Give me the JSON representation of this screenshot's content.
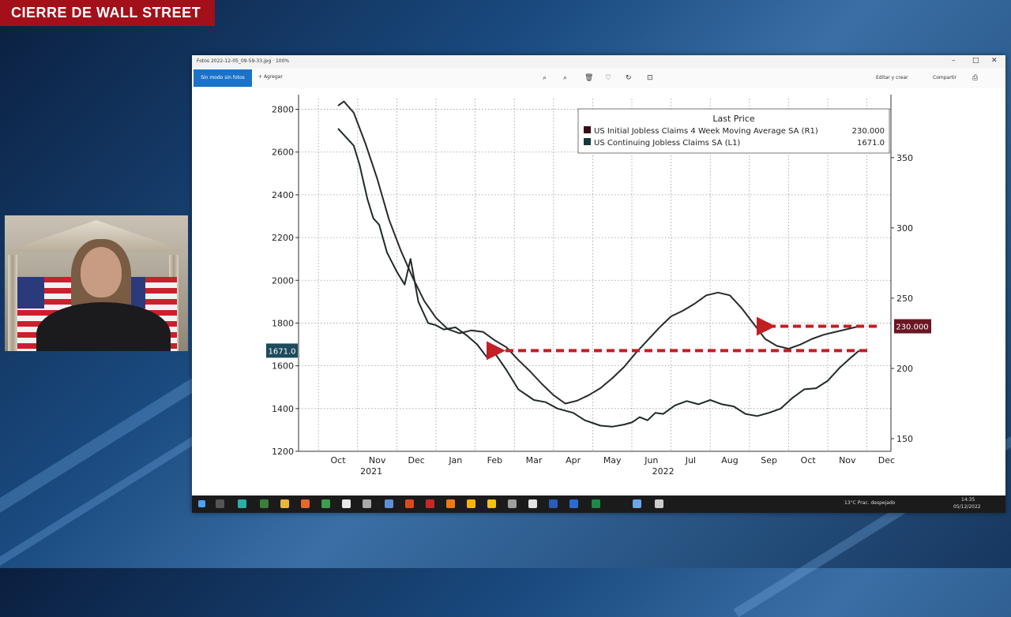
{
  "banner": {
    "title": "CIERRE DE WALL STREET"
  },
  "viewer": {
    "window_title": "Fotos 2022-12-05_09-59-33.jpg · 100%",
    "primary_button": "Sin modo sin fotos",
    "add_label": "Agregar",
    "toolbar_right": [
      "Editar y crear",
      "Compartir"
    ]
  },
  "chart_data": {
    "type": "line",
    "legend": {
      "title": "Last Price",
      "entries": [
        {
          "name": "US Initial Jobless Claims 4 Week Moving Average SA  (R1)",
          "value": "230.000",
          "color": "#3a0d17"
        },
        {
          "name": "US Continuing Jobless Claims SA  (L1)",
          "value": "1671.0",
          "color": "#16383a"
        }
      ]
    },
    "left_axis": {
      "ticks": [
        "1200",
        "1400",
        "1600",
        "1800",
        "2000",
        "2200",
        "2400",
        "2600",
        "2800"
      ],
      "ylim": [
        1200,
        2850
      ]
    },
    "right_axis": {
      "ticks": [
        "150",
        "200",
        "250",
        "300",
        "350"
      ],
      "ylim": [
        141,
        392
      ]
    },
    "x_ticks": [
      "Oct",
      "Nov",
      "Dec",
      "Jan",
      "Feb",
      "Mar",
      "Apr",
      "May",
      "Jun",
      "Jul",
      "Aug",
      "Sep",
      "Oct",
      "Nov",
      "Dec"
    ],
    "year_labels": [
      "2021",
      "2022"
    ],
    "series": [
      {
        "name": "US Initial Jobless Claims 4 Week Moving Average SA  (R1)",
        "axis": "right",
        "color": "#2a2a2a",
        "x": [
          0,
          0.15,
          0.4,
          0.7,
          1.0,
          1.3,
          1.6,
          1.9,
          2.2,
          2.5,
          2.8,
          3.1,
          3.4,
          3.7,
          4.0,
          4.3,
          4.6,
          4.9,
          5.2,
          5.5,
          5.8,
          6.1,
          6.4,
          6.7,
          7.0,
          7.3,
          7.6,
          7.9,
          8.2,
          8.5,
          8.8,
          9.1,
          9.4,
          9.7,
          10.0,
          10.3,
          10.6,
          10.9,
          11.2,
          11.5,
          11.8,
          12.1,
          12.4,
          12.7,
          13.0,
          13.3
        ],
        "y": [
          387,
          390,
          382,
          360,
          335,
          306,
          284,
          265,
          248,
          236,
          228,
          225,
          227,
          226,
          220,
          215,
          206,
          198,
          189,
          181,
          175,
          177,
          181,
          186,
          193,
          201,
          211,
          220,
          229,
          237,
          241,
          246,
          252,
          254,
          252,
          243,
          232,
          221,
          216,
          214,
          217,
          221,
          224,
          226,
          228,
          230
        ]
      },
      {
        "name": "US Continuing Jobless Claims SA  (L1)",
        "axis": "left",
        "color": "#1f2a2a",
        "x": [
          0,
          0.15,
          0.4,
          0.55,
          0.75,
          0.9,
          1.05,
          1.25,
          1.5,
          1.7,
          1.85,
          2.05,
          2.3,
          2.5,
          2.7,
          3.0,
          3.3,
          3.55,
          3.8,
          4.0,
          4.3,
          4.6,
          5.0,
          5.3,
          5.6,
          6.0,
          6.3,
          6.7,
          7.0,
          7.3,
          7.5,
          7.7,
          7.9,
          8.1,
          8.3,
          8.6,
          8.9,
          9.2,
          9.5,
          9.8,
          10.1,
          10.4,
          10.7,
          11.0,
          11.3,
          11.6,
          11.9,
          12.2,
          12.5,
          12.8,
          13.1,
          13.3
        ],
        "y": [
          2710,
          2680,
          2630,
          2540,
          2380,
          2290,
          2260,
          2130,
          2040,
          1980,
          2100,
          1900,
          1800,
          1790,
          1770,
          1780,
          1740,
          1700,
          1640,
          1660,
          1580,
          1490,
          1440,
          1430,
          1400,
          1380,
          1345,
          1320,
          1315,
          1325,
          1335,
          1360,
          1345,
          1380,
          1375,
          1415,
          1435,
          1420,
          1440,
          1420,
          1410,
          1375,
          1365,
          1380,
          1400,
          1450,
          1490,
          1495,
          1530,
          1590,
          1640,
          1671
        ]
      }
    ],
    "last_value_labels": {
      "left": "1671.0",
      "right": "230.000"
    },
    "arrow_levels": {
      "initial_claims": 230,
      "continuing_claims": 1671
    }
  },
  "webcam": {
    "subject": "presenter"
  },
  "taskbar": {
    "weather": "13°C  Prac. despejado",
    "time": "14:35",
    "date": "05/12/2022"
  }
}
